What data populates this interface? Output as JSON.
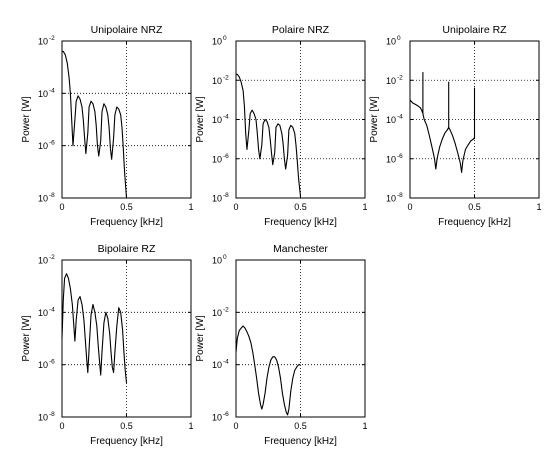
{
  "chart_data": [
    {
      "type": "line",
      "title": "Unipolaire NRZ",
      "xlabel": "Frequency [kHz]",
      "ylabel": "Power [W]",
      "xlim": [
        0,
        1
      ],
      "ylim": [
        1e-08,
        0.01
      ],
      "y_scale": "log",
      "grid": "dotted",
      "x_ticks": [
        "0",
        "0.5",
        "1"
      ],
      "y_ticks": [
        {
          "base": "10",
          "exp": "-8"
        },
        {
          "base": "10",
          "exp": "-6"
        },
        {
          "base": "10",
          "exp": "-4"
        },
        {
          "base": "10",
          "exp": "-2"
        }
      ],
      "series": [
        {
          "x": [
            0.0,
            0.01,
            0.025,
            0.04,
            0.055,
            0.065,
            0.075,
            0.085,
            0.1,
            0.11,
            0.125,
            0.14,
            0.155,
            0.165,
            0.175,
            0.185,
            0.2,
            0.21,
            0.225,
            0.24,
            0.255,
            0.265,
            0.275,
            0.285,
            0.3,
            0.31,
            0.325,
            0.34,
            0.355,
            0.365,
            0.375,
            0.385,
            0.4,
            0.41,
            0.425,
            0.44,
            0.455,
            0.465,
            0.475,
            0.485,
            0.5
          ],
          "y": [
            0.004,
            0.004,
            0.003,
            0.0015,
            0.0004,
            0.0001,
            1e-05,
            1e-06,
            1e-05,
            5e-05,
            8e-05,
            6e-05,
            3e-05,
            1e-05,
            2e-06,
            5e-07,
            3e-06,
            3e-05,
            5e-05,
            4e-05,
            2e-05,
            6e-06,
            1e-06,
            4e-07,
            1.5e-06,
            2e-05,
            4e-05,
            3e-05,
            1.5e-05,
            5e-06,
            8e-07,
            3e-07,
            2e-06,
            1.5e-05,
            3e-05,
            2.5e-05,
            1.5e-05,
            5e-06,
            8e-07,
            1e-07,
            1e-08
          ]
        }
      ]
    },
    {
      "type": "line",
      "title": "Polaire NRZ",
      "xlabel": "Frequency [kHz]",
      "ylabel": "Power [W]",
      "xlim": [
        0,
        1
      ],
      "ylim": [
        1e-08,
        1
      ],
      "y_scale": "log",
      "grid": "dotted",
      "x_ticks": [
        "0",
        "0.5",
        "1"
      ],
      "y_ticks": [
        {
          "base": "10",
          "exp": "-8"
        },
        {
          "base": "10",
          "exp": "-6"
        },
        {
          "base": "10",
          "exp": "-4"
        },
        {
          "base": "10",
          "exp": "-2"
        },
        {
          "base": "10",
          "exp": "0"
        }
      ],
      "series": [
        {
          "x": [
            0.0,
            0.01,
            0.025,
            0.04,
            0.055,
            0.065,
            0.075,
            0.085,
            0.1,
            0.11,
            0.125,
            0.14,
            0.155,
            0.165,
            0.175,
            0.185,
            0.2,
            0.21,
            0.225,
            0.24,
            0.255,
            0.265,
            0.275,
            0.285,
            0.3,
            0.31,
            0.325,
            0.34,
            0.355,
            0.365,
            0.375,
            0.385,
            0.4,
            0.41,
            0.425,
            0.44,
            0.455,
            0.465,
            0.475,
            0.485,
            0.5
          ],
          "y": [
            0.02,
            0.02,
            0.015,
            0.008,
            0.003,
            0.0005,
            2e-05,
            3e-06,
            3e-05,
            0.0002,
            0.0003,
            0.0002,
            0.0001,
            2e-05,
            3e-06,
            1e-06,
            5e-06,
            6e-05,
            0.0001,
            8e-05,
            4e-05,
            1e-05,
            2e-06,
            5e-07,
            2e-06,
            4e-05,
            6e-05,
            5e-05,
            2e-05,
            6e-06,
            1e-06,
            3e-07,
            1.5e-06,
            3e-05,
            5e-05,
            4e-05,
            2e-05,
            5e-06,
            8e-07,
            1e-07,
            1.2e-08
          ]
        }
      ]
    },
    {
      "type": "line",
      "title": "Unipolaire RZ",
      "xlabel": "Frequency [kHz]",
      "ylabel": "Power [W]",
      "xlim": [
        0,
        1
      ],
      "ylim": [
        1e-08,
        1
      ],
      "y_scale": "log",
      "grid": "dotted",
      "x_ticks": [
        "0",
        "0.5",
        "1"
      ],
      "y_ticks": [
        {
          "base": "10",
          "exp": "-8"
        },
        {
          "base": "10",
          "exp": "-6"
        },
        {
          "base": "10",
          "exp": "-4"
        },
        {
          "base": "10",
          "exp": "-2"
        },
        {
          "base": "10",
          "exp": "0"
        }
      ],
      "series": [
        {
          "x": [
            0.0,
            0.02,
            0.04,
            0.06,
            0.08,
            0.09,
            0.1,
            0.1,
            0.1,
            0.11,
            0.13,
            0.15,
            0.17,
            0.19,
            0.2,
            0.21,
            0.23,
            0.25,
            0.27,
            0.29,
            0.3,
            0.3,
            0.3,
            0.31,
            0.33,
            0.35,
            0.37,
            0.39,
            0.4,
            0.41,
            0.43,
            0.45,
            0.47,
            0.49,
            0.5,
            0.5,
            0.5
          ],
          "y": [
            0.001,
            0.0007,
            0.0006,
            0.0005,
            0.0004,
            0.0003,
            0.0002,
            0.025,
            0.0002,
            0.0001,
            5e-05,
            1.5e-05,
            4e-06,
            1e-06,
            3e-07,
            1e-06,
            4e-06,
            1e-05,
            2e-05,
            3e-05,
            4e-05,
            0.008,
            4e-05,
            3e-05,
            1.5e-05,
            6e-06,
            2e-06,
            6e-07,
            2e-07,
            8e-07,
            3e-06,
            5e-06,
            8e-06,
            1e-05,
            1.2e-05,
            0.004,
            1e-05
          ]
        }
      ]
    },
    {
      "type": "line",
      "title": "Bipolaire RZ",
      "xlabel": "Frequency [kHz]",
      "ylabel": "Power [W]",
      "xlim": [
        0,
        1
      ],
      "ylim": [
        1e-08,
        0.01
      ],
      "y_scale": "log",
      "grid": "dotted",
      "x_ticks": [
        "0",
        "0.5",
        "1"
      ],
      "y_ticks": [
        {
          "base": "10",
          "exp": "-8"
        },
        {
          "base": "10",
          "exp": "-6"
        },
        {
          "base": "10",
          "exp": "-4"
        },
        {
          "base": "10",
          "exp": "-2"
        }
      ],
      "series": [
        {
          "x": [
            0.0,
            0.01,
            0.02,
            0.035,
            0.05,
            0.065,
            0.08,
            0.09,
            0.1,
            0.11,
            0.125,
            0.14,
            0.155,
            0.17,
            0.18,
            0.19,
            0.2,
            0.21,
            0.225,
            0.24,
            0.255,
            0.27,
            0.28,
            0.29,
            0.3,
            0.31,
            0.325,
            0.34,
            0.355,
            0.37,
            0.38,
            0.39,
            0.4,
            0.41,
            0.425,
            0.44,
            0.455,
            0.47,
            0.48,
            0.49,
            0.5
          ],
          "y": [
            1e-05,
            0.0003,
            0.002,
            0.003,
            0.002,
            0.0008,
            0.0002,
            4e-05,
            8e-06,
            5e-05,
            0.0003,
            0.0004,
            0.0002,
            5e-05,
            1e-05,
            2e-06,
            5e-07,
            4e-06,
            8e-05,
            0.0002,
            0.0001,
            3e-05,
            6e-06,
            1.5e-06,
            4e-07,
            3e-06,
            4e-05,
            0.0001,
            6e-05,
            1.5e-05,
            3e-06,
            8e-07,
            5e-07,
            3e-06,
            3e-05,
            0.00015,
            0.0001,
            2e-05,
            3e-06,
            6e-07,
            2e-07
          ]
        }
      ]
    },
    {
      "type": "line",
      "title": "Manchester",
      "xlabel": "Frequency [kHz]",
      "ylabel": "Power [W]",
      "xlim": [
        0,
        1
      ],
      "ylim": [
        1e-06,
        1
      ],
      "y_scale": "log",
      "grid": "dotted",
      "x_ticks": [
        "0",
        "0.5",
        "1"
      ],
      "y_ticks": [
        {
          "base": "10",
          "exp": "-6"
        },
        {
          "base": "10",
          "exp": "-4"
        },
        {
          "base": "10",
          "exp": "-2"
        },
        {
          "base": "10",
          "exp": "0"
        }
      ],
      "series": [
        {
          "x": [
            0.0,
            0.01,
            0.025,
            0.04,
            0.055,
            0.07,
            0.085,
            0.1,
            0.115,
            0.13,
            0.145,
            0.16,
            0.175,
            0.19,
            0.2,
            0.21,
            0.225,
            0.24,
            0.255,
            0.27,
            0.285,
            0.3,
            0.315,
            0.33,
            0.345,
            0.36,
            0.375,
            0.39,
            0.4,
            0.41,
            0.425,
            0.44,
            0.455,
            0.47,
            0.485,
            0.5
          ],
          "y": [
            0.0003,
            0.001,
            0.002,
            0.0025,
            0.003,
            0.0025,
            0.0018,
            0.0012,
            0.0007,
            0.0003,
            0.0001,
            3e-05,
            8e-06,
            3e-06,
            2e-06,
            3e-06,
            8e-06,
            3e-05,
            8e-05,
            0.00015,
            0.0002,
            0.0002,
            0.00015,
            8e-05,
            3e-05,
            8e-06,
            3e-06,
            1.5e-06,
            1.2e-06,
            2e-06,
            1e-05,
            3e-05,
            6e-05,
            8e-05,
            0.0001,
            0.0001
          ]
        }
      ]
    }
  ]
}
